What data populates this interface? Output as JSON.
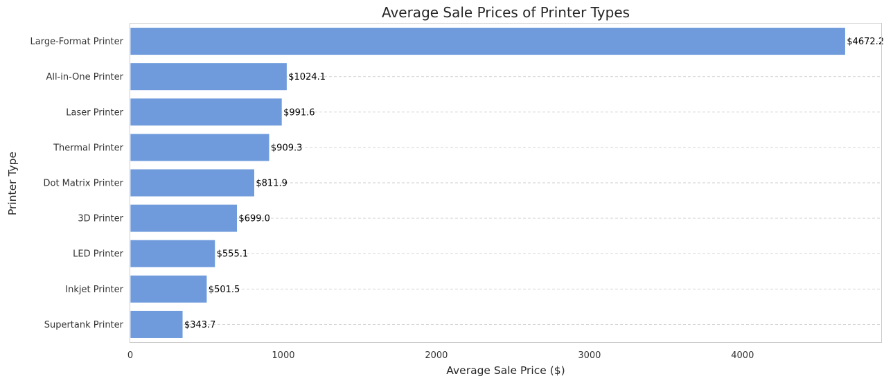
{
  "chart_data": {
    "type": "bar",
    "orientation": "horizontal",
    "title": "Average Sale Prices of Printer Types",
    "xlabel": "Average Sale Price ($)",
    "ylabel": "Printer Type",
    "categories": [
      "Large-Format Printer",
      "All-in-One Printer",
      "Laser Printer",
      "Thermal Printer",
      "Dot Matrix Printer",
      "3D Printer",
      "LED Printer",
      "Inkjet Printer",
      "Supertank Printer"
    ],
    "values": [
      4672.2,
      1024.1,
      991.6,
      909.3,
      811.9,
      699.0,
      555.1,
      501.5,
      343.7
    ],
    "data_labels": [
      "$4672.2",
      "$1024.1",
      "$991.6",
      "$909.3",
      "$811.9",
      "$699.0",
      "$555.1",
      "$501.5",
      "$343.7"
    ],
    "xlim": [
      0,
      4906
    ],
    "xticks": [
      0,
      1000,
      2000,
      3000,
      4000
    ],
    "xtick_labels": [
      "0",
      "1000",
      "2000",
      "3000",
      "4000"
    ],
    "grid": "x-dashed",
    "colors": {
      "bar": "#6f9bdc",
      "grid": "#cfcfcf",
      "frame": "#cccccc"
    }
  }
}
